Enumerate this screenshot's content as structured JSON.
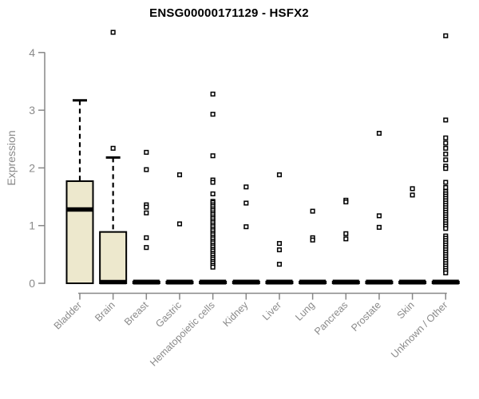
{
  "chart_data": {
    "type": "boxplot",
    "title": "ENSG00000171129 - HSFX2",
    "xlabel": "",
    "ylabel": "Expression",
    "ylim": [
      0,
      4.4
    ],
    "yticks": [
      0,
      1,
      2,
      3,
      4
    ],
    "grid": false,
    "legend": "none",
    "box_fill": "#EDE8CD",
    "box_stroke": "#000000",
    "axis_color": "#878787",
    "text_color": "#8a8a8a",
    "categories": [
      "Bladder",
      "Brain",
      "Breast",
      "Gastric",
      "Hematopoietic cells",
      "Kidney",
      "Liver",
      "Lung",
      "Pancreas",
      "Prostate",
      "Skin",
      "Unknown / Other"
    ],
    "boxes": [
      {
        "category": "Bladder",
        "whisker_low": 0,
        "q1": 0,
        "median": 1.28,
        "q3": 1.77,
        "whisker_high": 3.17,
        "outliers": []
      },
      {
        "category": "Brain",
        "whisker_low": 0,
        "q1": 0,
        "median": 0.02,
        "q3": 0.89,
        "whisker_high": 2.18,
        "outliers": [
          2.34,
          4.35
        ]
      },
      {
        "category": "Breast",
        "whisker_low": 0,
        "q1": 0,
        "median": 0.02,
        "q3": 0.03,
        "whisker_high": 0.03,
        "outliers": [
          2.27,
          1.97,
          1.36,
          1.32,
          1.22,
          0.79,
          0.62
        ]
      },
      {
        "category": "Gastric",
        "whisker_low": 0,
        "q1": 0,
        "median": 0.02,
        "q3": 0.03,
        "whisker_high": 0.03,
        "outliers": [
          1.88,
          1.03
        ]
      },
      {
        "category": "Hematopoietic cells",
        "whisker_low": 0,
        "q1": 0,
        "median": 0.02,
        "q3": 0.03,
        "whisker_high": 0.03,
        "outliers": [
          3.28,
          2.93,
          2.21,
          1.79,
          1.75,
          1.55,
          1.42,
          1.4,
          1.36,
          1.33,
          1.29,
          1.26,
          1.22,
          1.19,
          1.15,
          1.12,
          1.08,
          1.05,
          1.01,
          0.98,
          0.94,
          0.91,
          0.87,
          0.84,
          0.8,
          0.77,
          0.73,
          0.7,
          0.66,
          0.63,
          0.59,
          0.56,
          0.52,
          0.49,
          0.45,
          0.42,
          0.38,
          0.35,
          0.31,
          0.28
        ]
      },
      {
        "category": "Kidney",
        "whisker_low": 0,
        "q1": 0,
        "median": 0.02,
        "q3": 0.03,
        "whisker_high": 0.03,
        "outliers": [
          1.67,
          1.39,
          0.98
        ]
      },
      {
        "category": "Liver",
        "whisker_low": 0,
        "q1": 0,
        "median": 0.02,
        "q3": 0.03,
        "whisker_high": 0.03,
        "outliers": [
          1.88,
          0.69,
          0.58,
          0.33
        ]
      },
      {
        "category": "Lung",
        "whisker_low": 0,
        "q1": 0,
        "median": 0.02,
        "q3": 0.03,
        "whisker_high": 0.03,
        "outliers": [
          1.25,
          0.79,
          0.75
        ]
      },
      {
        "category": "Pancreas",
        "whisker_low": 0,
        "q1": 0,
        "median": 0.02,
        "q3": 0.03,
        "whisker_high": 0.03,
        "outliers": [
          1.44,
          1.41,
          0.86,
          0.77
        ]
      },
      {
        "category": "Prostate",
        "whisker_low": 0,
        "q1": 0,
        "median": 0.02,
        "q3": 0.03,
        "whisker_high": 0.03,
        "outliers": [
          2.6,
          1.17,
          0.97
        ]
      },
      {
        "category": "Skin",
        "whisker_low": 0,
        "q1": 0,
        "median": 0.02,
        "q3": 0.03,
        "whisker_high": 0.03,
        "outliers": [
          1.64,
          1.53
        ]
      },
      {
        "category": "Unknown / Other",
        "whisker_low": 0,
        "q1": 0,
        "median": 0.02,
        "q3": 0.03,
        "whisker_high": 0.03,
        "outliers": [
          4.29,
          2.83,
          2.52,
          2.43,
          2.34,
          2.24,
          2.14,
          2.03,
          1.99,
          1.75,
          1.66,
          1.59,
          1.55,
          1.51,
          1.47,
          1.43,
          1.39,
          1.35,
          1.31,
          1.27,
          1.23,
          1.19,
          1.15,
          1.11,
          1.07,
          1.03,
          0.99,
          0.95,
          0.82,
          0.78,
          0.74,
          0.7,
          0.66,
          0.62,
          0.58,
          0.54,
          0.5,
          0.46,
          0.42,
          0.38,
          0.34,
          0.3,
          0.26,
          0.22,
          0.18
        ]
      }
    ]
  }
}
